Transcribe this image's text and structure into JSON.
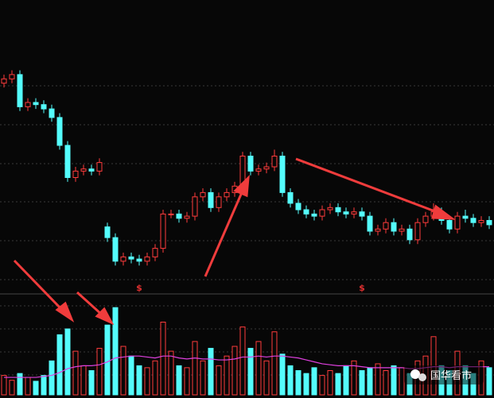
{
  "chart_data": {
    "type": "candlestick",
    "open": [
      89,
      91,
      93,
      78,
      80,
      79,
      77,
      73,
      60,
      45,
      48,
      49,
      48,
      22,
      17,
      6,
      8,
      7,
      6,
      8,
      12,
      28,
      28,
      26,
      27,
      36,
      38,
      31,
      36,
      38,
      41,
      55,
      48,
      49,
      50,
      55,
      38,
      33,
      30,
      28,
      27,
      30,
      31,
      29,
      28,
      29,
      27,
      20,
      21,
      24,
      20,
      21,
      16,
      24,
      27,
      29,
      25,
      21,
      27,
      26,
      24,
      25
    ],
    "high": [
      93,
      95,
      95,
      82,
      82,
      81,
      79,
      75,
      62,
      50,
      51,
      51,
      54,
      24,
      19,
      10,
      10,
      9,
      10,
      14,
      30,
      30,
      30,
      29,
      38,
      40,
      40,
      38,
      40,
      43,
      57,
      57,
      51,
      52,
      58,
      57,
      40,
      35,
      32,
      30,
      32,
      33,
      33,
      31,
      31,
      31,
      29,
      23,
      26,
      26,
      23,
      23,
      26,
      29,
      33,
      31,
      27,
      29,
      30,
      28,
      27,
      27
    ],
    "low": [
      87,
      89,
      76,
      76,
      77,
      75,
      71,
      58,
      43,
      43,
      46,
      46,
      46,
      15,
      4,
      4,
      5,
      4,
      4,
      6,
      10,
      26,
      24,
      24,
      25,
      34,
      29,
      29,
      34,
      36,
      39,
      46,
      46,
      47,
      48,
      36,
      31,
      28,
      26,
      25,
      25,
      28,
      27,
      26,
      26,
      25,
      18,
      18,
      19,
      18,
      18,
      14,
      14,
      22,
      25,
      23,
      19,
      19,
      24,
      22,
      22,
      21
    ],
    "close": [
      91,
      93,
      78,
      80,
      79,
      77,
      73,
      60,
      45,
      48,
      49,
      48,
      52,
      17,
      6,
      8,
      7,
      6,
      8,
      12,
      28,
      28,
      26,
      27,
      36,
      38,
      31,
      36,
      38,
      41,
      55,
      48,
      49,
      50,
      55,
      38,
      33,
      30,
      28,
      27,
      30,
      31,
      29,
      28,
      29,
      27,
      20,
      21,
      24,
      20,
      21,
      16,
      24,
      27,
      29,
      25,
      21,
      27,
      26,
      24,
      25,
      23
    ],
    "volume": [
      20,
      15,
      22,
      18,
      14,
      20,
      35,
      62,
      68,
      45,
      30,
      25,
      48,
      72,
      90,
      50,
      40,
      30,
      28,
      35,
      75,
      45,
      30,
      28,
      55,
      35,
      48,
      30,
      40,
      50,
      70,
      48,
      55,
      35,
      65,
      42,
      30,
      25,
      22,
      28,
      20,
      25,
      22,
      30,
      35,
      25,
      28,
      32,
      25,
      30,
      28,
      22,
      35,
      40,
      60,
      30,
      25,
      45,
      30,
      22,
      35,
      28
    ],
    "volume_ma": [
      18,
      18,
      18,
      18,
      18,
      19,
      20,
      23,
      27,
      29,
      30,
      30,
      31,
      34,
      38,
      39,
      40,
      40,
      39,
      38,
      40,
      40,
      38,
      37,
      38,
      37,
      37,
      36,
      36,
      37,
      39,
      39,
      40,
      39,
      40,
      40,
      39,
      38,
      36,
      34,
      32,
      31,
      30,
      30,
      30,
      29,
      28,
      28,
      28,
      28,
      28,
      27,
      27,
      28,
      29,
      29,
      28,
      29,
      29,
      29,
      29,
      29
    ],
    "signal_labels": [
      null,
      null,
      null,
      null,
      null,
      null,
      null,
      null,
      null,
      null,
      null,
      null,
      null,
      null,
      null,
      null,
      null,
      "$",
      null,
      null,
      null,
      null,
      null,
      null,
      null,
      null,
      null,
      null,
      null,
      null,
      null,
      null,
      null,
      null,
      null,
      null,
      null,
      null,
      null,
      null,
      null,
      null,
      null,
      null,
      null,
      "$",
      null,
      null,
      null,
      null,
      null,
      null,
      null,
      null,
      null,
      null,
      null,
      null,
      null,
      null,
      null,
      null
    ],
    "ylim": [
      0,
      100
    ],
    "volume_ylim": [
      0,
      100
    ],
    "up_color": "#ff3b3b",
    "down_color": "#54fcfc",
    "ma_color": "#e040e0"
  },
  "watermark": "国华看市"
}
